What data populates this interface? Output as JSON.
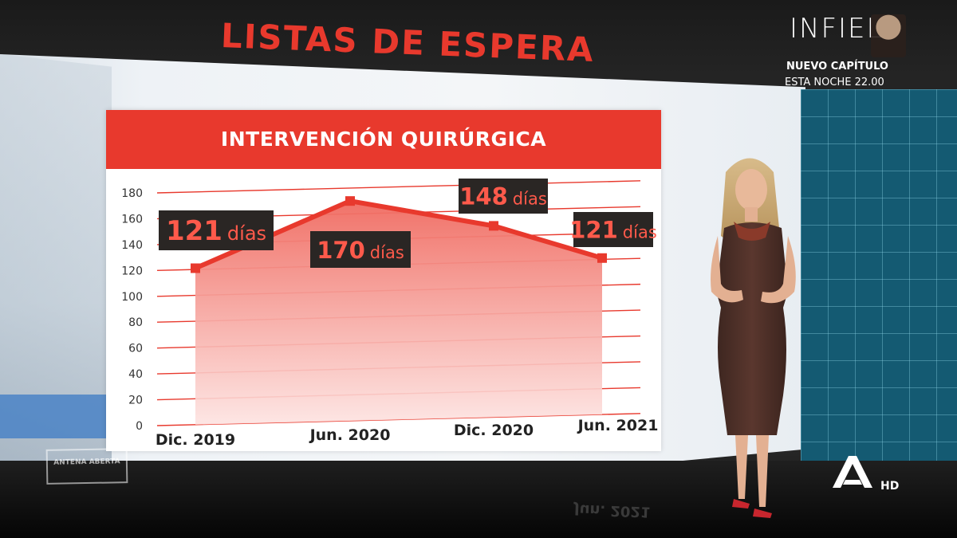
{
  "headline": "LISTAS DE ESPERA",
  "chart_data": {
    "type": "area",
    "title": "INTERVENCIÓN QUIRÚRGICA",
    "categories": [
      "Dic. 2019",
      "Jun. 2020",
      "Dic. 2020",
      "Jun. 2021"
    ],
    "values": [
      121,
      170,
      148,
      121
    ],
    "data_labels": [
      {
        "value": "121",
        "unit": "días"
      },
      {
        "value": "170",
        "unit": "días"
      },
      {
        "value": "148",
        "unit": "días"
      },
      {
        "value": "121",
        "unit": "días"
      }
    ],
    "ylim": [
      0,
      180
    ],
    "yticks": [
      0,
      20,
      40,
      60,
      80,
      100,
      120,
      140,
      160,
      180
    ],
    "grid": true,
    "colors": {
      "line": "#e8392d",
      "fill_top": "#f06a60",
      "fill_bottom": "#fde3e1",
      "label_bg": "#2a2624",
      "label_text": "#ff5a4b"
    }
  },
  "promo": {
    "show_title": "INFIEL",
    "subtitle": "NUEVO CAPÍTULO",
    "schedule": "ESTA NOCHE 22.00"
  },
  "bug": {
    "channel_logo": "antena3-logo",
    "quality": "HD",
    "watermark": "ANTENA ABERTA"
  },
  "reflection_text": "Jun. 2021"
}
